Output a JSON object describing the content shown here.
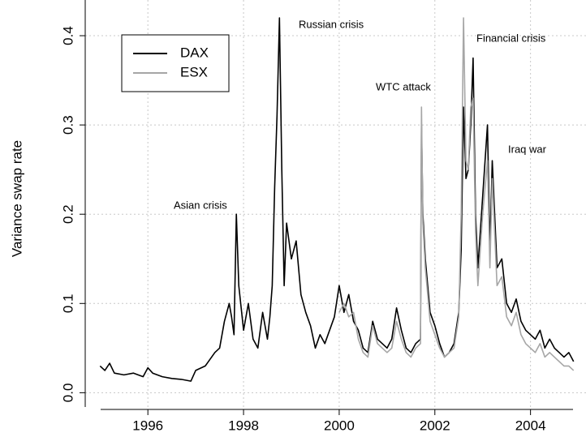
{
  "chart_data": {
    "type": "line",
    "ylabel": "Variance swap rate",
    "x": [
      1995.0,
      1995.1,
      1995.2,
      1995.3,
      1995.5,
      1995.7,
      1995.9,
      1996.0,
      1996.1,
      1996.3,
      1996.5,
      1996.7,
      1996.9,
      1997.0,
      1997.2,
      1997.4,
      1997.5,
      1997.6,
      1997.7,
      1997.75,
      1997.8,
      1997.85,
      1997.9,
      1998.0,
      1998.1,
      1998.2,
      1998.3,
      1998.4,
      1998.5,
      1998.55,
      1998.6,
      1998.65,
      1998.7,
      1998.75,
      1998.8,
      1998.85,
      1998.9,
      1999.0,
      1999.1,
      1999.2,
      1999.3,
      1999.4,
      1999.5,
      1999.6,
      1999.7,
      1999.8,
      1999.9,
      2000.0,
      2000.1,
      2000.2,
      2000.3,
      2000.4,
      2000.5,
      2000.6,
      2000.7,
      2000.8,
      2000.9,
      2001.0,
      2001.1,
      2001.2,
      2001.3,
      2001.4,
      2001.5,
      2001.6,
      2001.7,
      2001.72,
      2001.75,
      2001.8,
      2001.9,
      2002.0,
      2002.1,
      2002.2,
      2002.3,
      2002.4,
      2002.5,
      2002.55,
      2002.6,
      2002.65,
      2002.7,
      2002.75,
      2002.8,
      2002.85,
      2002.9,
      2003.0,
      2003.1,
      2003.15,
      2003.2,
      2003.3,
      2003.4,
      2003.5,
      2003.6,
      2003.7,
      2003.8,
      2003.9,
      2004.0,
      2004.1,
      2004.2,
      2004.3,
      2004.4,
      2004.5,
      2004.6,
      2004.7,
      2004.8,
      2004.9
    ],
    "series": [
      {
        "name": "DAX",
        "color": "#000000",
        "values": [
          0.03,
          0.025,
          0.033,
          0.022,
          0.02,
          0.022,
          0.018,
          0.028,
          0.022,
          0.018,
          0.016,
          0.015,
          0.013,
          0.025,
          0.03,
          0.045,
          0.05,
          0.08,
          0.1,
          0.085,
          0.065,
          0.2,
          0.12,
          0.07,
          0.1,
          0.06,
          0.05,
          0.09,
          0.06,
          0.085,
          0.12,
          0.23,
          0.31,
          0.42,
          0.25,
          0.12,
          0.19,
          0.15,
          0.17,
          0.11,
          0.09,
          0.075,
          0.05,
          0.065,
          0.055,
          0.07,
          0.085,
          0.12,
          0.09,
          0.11,
          0.08,
          0.07,
          0.05,
          0.045,
          0.08,
          0.06,
          0.055,
          0.05,
          0.06,
          0.095,
          0.07,
          0.05,
          0.045,
          0.055,
          0.06,
          0.3,
          0.2,
          0.15,
          0.09,
          0.075,
          0.055,
          0.04,
          0.045,
          0.055,
          0.09,
          0.16,
          0.32,
          0.24,
          0.25,
          0.3,
          0.375,
          0.2,
          0.14,
          0.22,
          0.3,
          0.16,
          0.26,
          0.14,
          0.15,
          0.1,
          0.09,
          0.105,
          0.08,
          0.07,
          0.065,
          0.06,
          0.07,
          0.05,
          0.06,
          0.05,
          0.045,
          0.04,
          0.045,
          0.035
        ]
      },
      {
        "name": "ESX",
        "color": "#a6a6a6",
        "values": [
          null,
          null,
          null,
          null,
          null,
          null,
          null,
          null,
          null,
          null,
          null,
          null,
          null,
          null,
          null,
          null,
          null,
          null,
          null,
          null,
          null,
          null,
          null,
          null,
          null,
          null,
          null,
          null,
          null,
          null,
          null,
          null,
          null,
          null,
          null,
          null,
          null,
          null,
          null,
          null,
          null,
          null,
          null,
          null,
          null,
          null,
          null,
          0.09,
          0.1,
          0.085,
          0.09,
          0.06,
          0.045,
          0.04,
          0.075,
          0.055,
          0.05,
          0.045,
          0.05,
          0.08,
          0.06,
          0.045,
          0.04,
          0.05,
          0.055,
          0.32,
          0.19,
          0.14,
          0.08,
          0.065,
          0.05,
          0.04,
          0.045,
          0.05,
          0.085,
          0.2,
          0.42,
          0.26,
          0.25,
          0.32,
          0.33,
          0.18,
          0.12,
          0.2,
          0.26,
          0.14,
          0.24,
          0.12,
          0.13,
          0.085,
          0.075,
          0.09,
          0.065,
          0.055,
          0.05,
          0.045,
          0.055,
          0.04,
          0.045,
          0.04,
          0.035,
          0.03,
          0.03,
          0.025
        ]
      }
    ],
    "annotations": [
      "Asian crisis",
      "Russian crisis",
      "WTC attack",
      "Financial crisis",
      "Iraq war"
    ],
    "xlim": [
      1994.69,
      2005.16
    ],
    "ylim": [
      -0.016,
      0.44
    ],
    "xticks": [
      1996,
      1998,
      2000,
      2002,
      2004
    ],
    "yticks": [
      {
        "value": 0,
        "label": "0.0"
      },
      0.1,
      0.2,
      0.3,
      0.4
    ],
    "grid": true,
    "legend_position": "top-left"
  }
}
